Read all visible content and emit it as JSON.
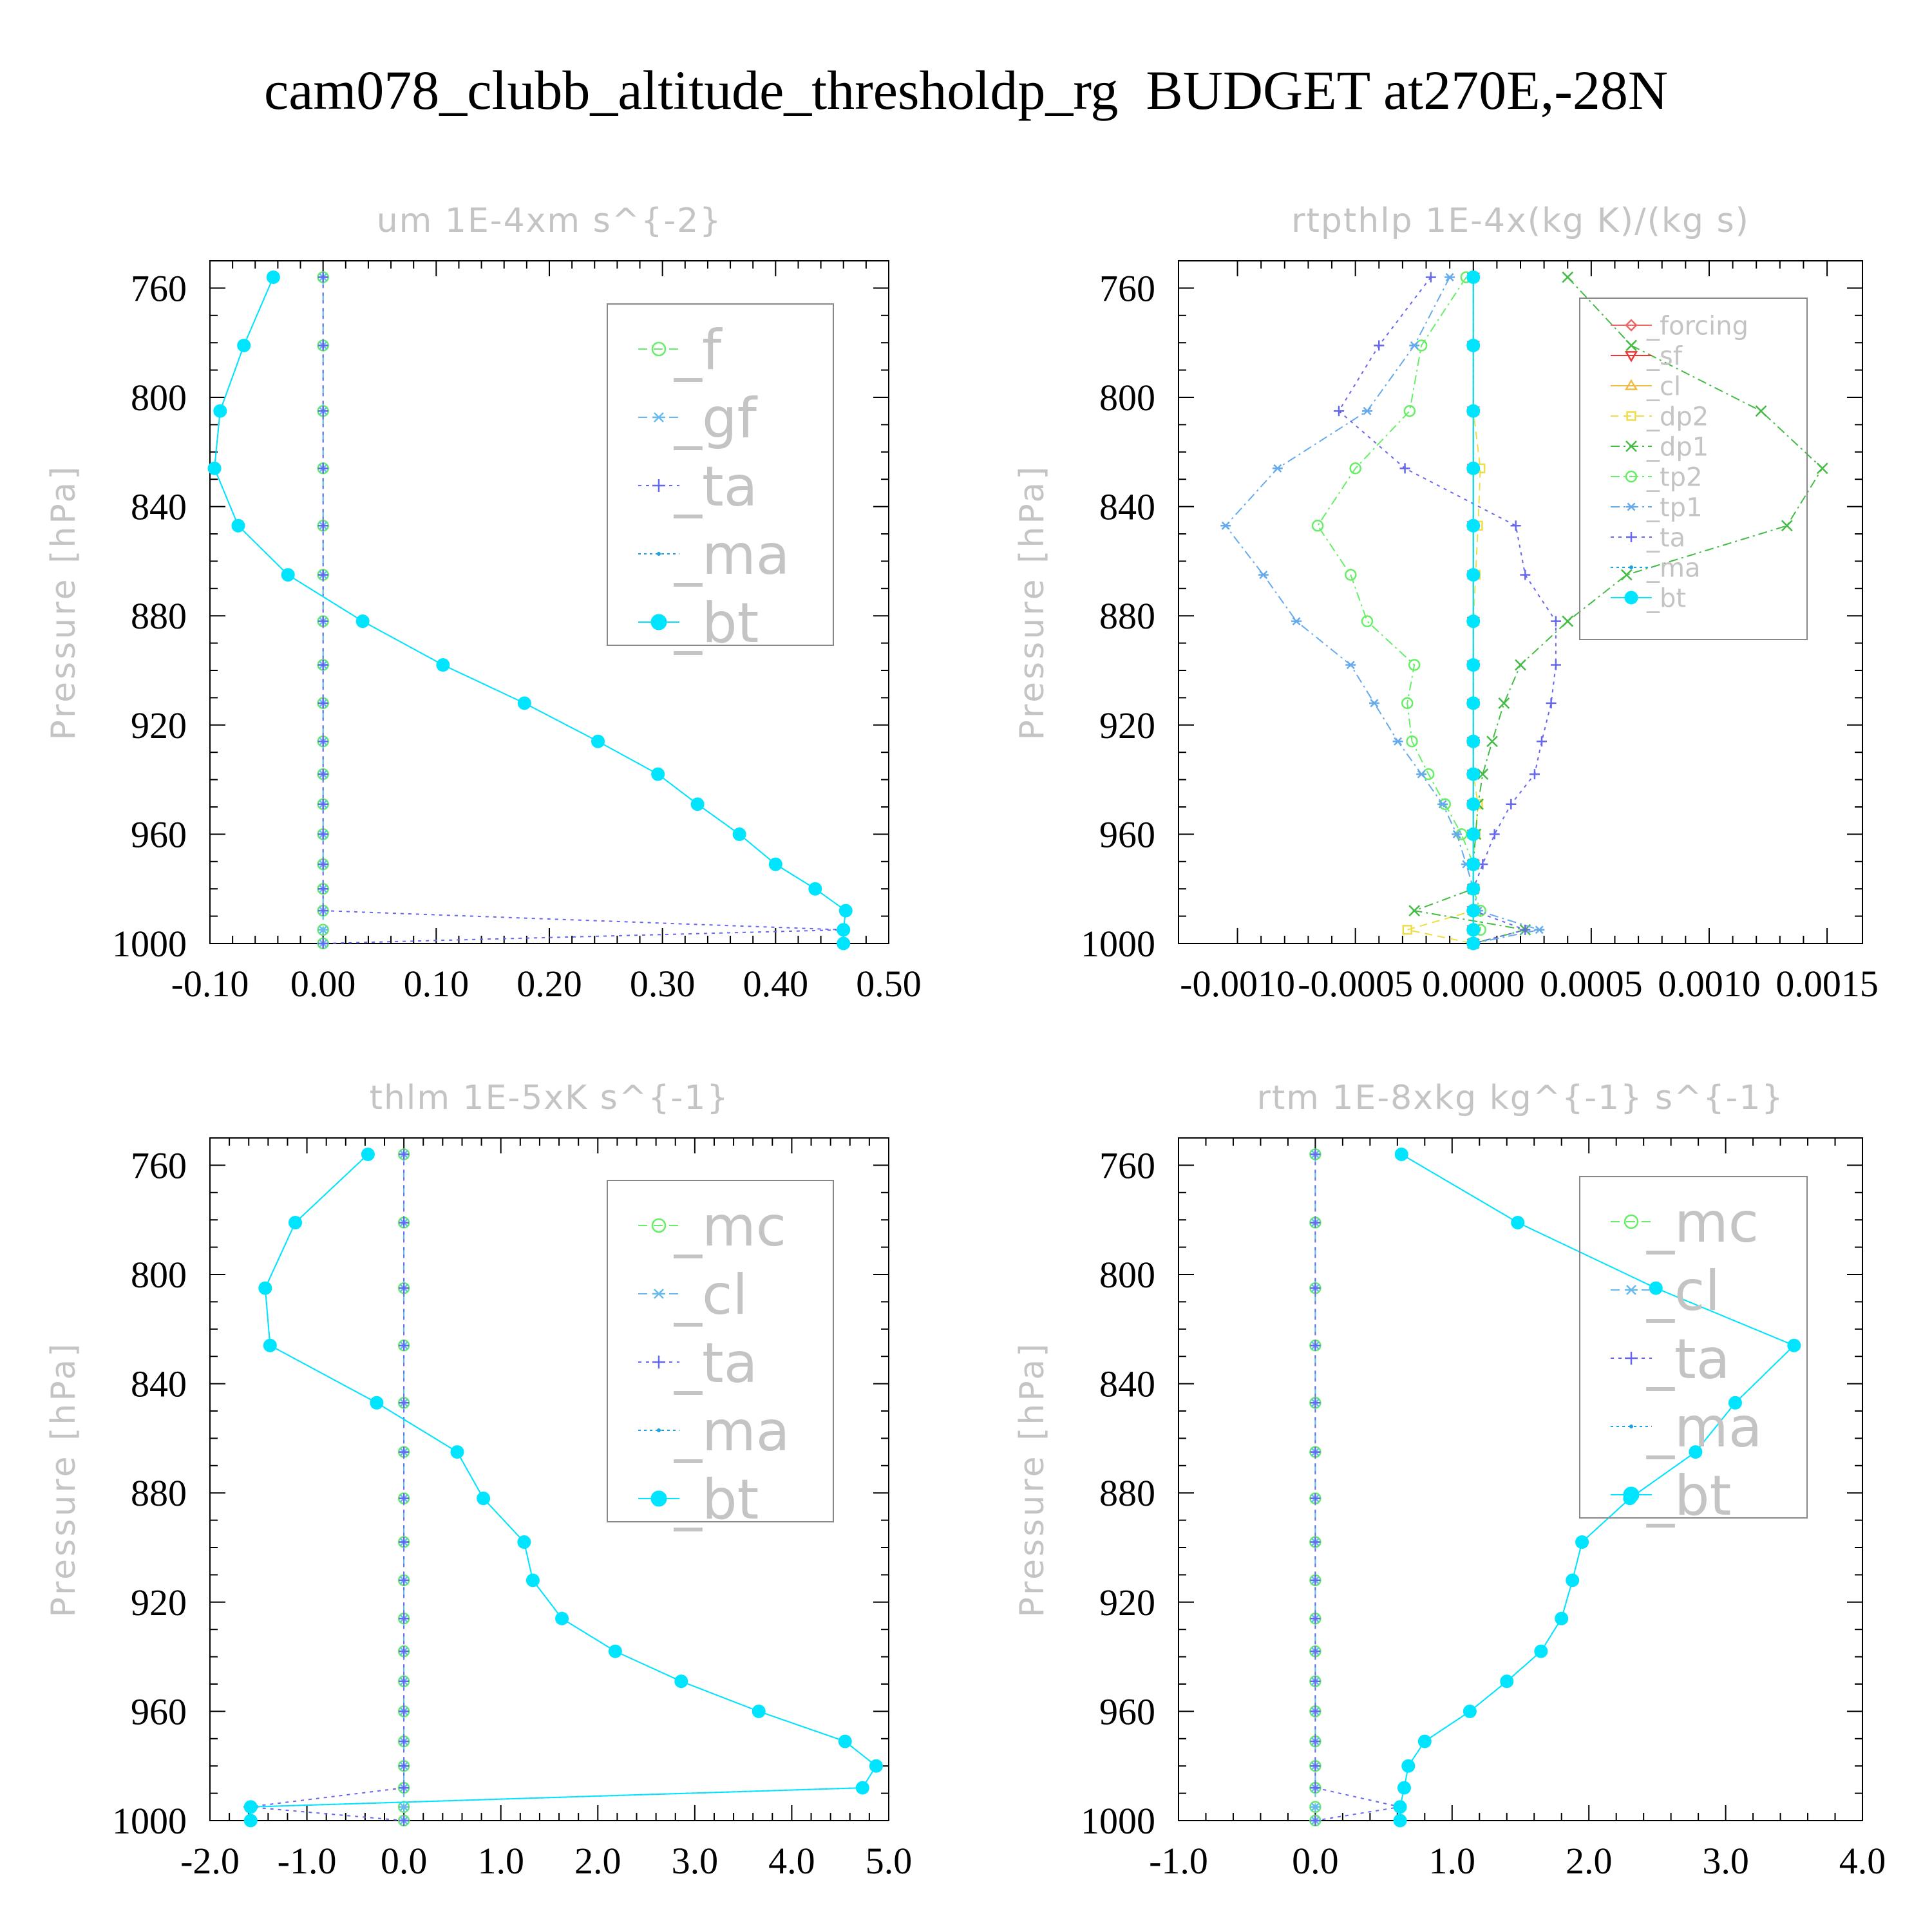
{
  "title": "cam078_clubb_altitude_thresholdp_rg  BUDGET at270E,-28N",
  "chart_data": [
    {
      "type": "line",
      "title": "um  1E-4xm s^{-2}",
      "ylabel": "Pressure [hPa]",
      "xlim": [
        -0.1,
        0.5
      ],
      "ylim": [
        750,
        1000
      ],
      "y_inverted": true,
      "x_ticks": [
        "-0.10",
        "0.00",
        "0.10",
        "0.20",
        "0.30",
        "0.40",
        "0.50"
      ],
      "x_tick_values": [
        -0.1,
        0.0,
        0.1,
        0.2,
        0.3,
        0.4,
        0.5
      ],
      "y_ticks": [
        "760",
        "800",
        "840",
        "880",
        "920",
        "960",
        "1000"
      ],
      "y_tick_values": [
        760,
        800,
        840,
        880,
        920,
        960,
        1000
      ],
      "legend_size": "large",
      "levels": [
        756,
        781,
        805,
        826,
        847,
        865,
        882,
        898,
        912,
        926,
        938,
        949,
        960,
        971,
        980,
        988,
        995,
        1000
      ],
      "series": [
        {
          "name": "_f",
          "color": "#66ee66",
          "marker": "circle-open",
          "dash": "14,10",
          "values": [
            0,
            0,
            0,
            0,
            0,
            0,
            0,
            0,
            0,
            0,
            0,
            0,
            0,
            0,
            0,
            0,
            0,
            0
          ]
        },
        {
          "name": "_gf",
          "color": "#66bbee",
          "marker": "asterisk",
          "dash": "14,10",
          "values": [
            0,
            0,
            0,
            0,
            0,
            0,
            0,
            0,
            0,
            0,
            0,
            0,
            0,
            0,
            0,
            0,
            0,
            0
          ]
        },
        {
          "name": "_ta",
          "color": "#6666ee",
          "marker": "plus",
          "dash": "5,7",
          "values": [
            0,
            0,
            0,
            0,
            0,
            0,
            0,
            0,
            0,
            0,
            0,
            0,
            0,
            0,
            0,
            0,
            0.46,
            0.0
          ]
        },
        {
          "name": "_ma",
          "color": "#1fa0e0",
          "marker": "dot",
          "dash": "4,5",
          "values": [
            -0.044,
            -0.07,
            -0.091,
            -0.096,
            -0.075,
            -0.031,
            0.035,
            0.106,
            0.178,
            0.243,
            0.296,
            0.331,
            0.368,
            0.4,
            0.435,
            0.462,
            0.46,
            0.46
          ]
        },
        {
          "name": "_bt",
          "color": "#00e5ff",
          "marker": "filled",
          "dash": "",
          "values": [
            -0.044,
            -0.07,
            -0.091,
            -0.096,
            -0.075,
            -0.031,
            0.035,
            0.106,
            0.178,
            0.243,
            0.296,
            0.331,
            0.368,
            0.4,
            0.435,
            0.462,
            0.46,
            0.46
          ]
        }
      ]
    },
    {
      "type": "line",
      "title": "rtpthlp  1E-4x(kg K)/(kg s)",
      "ylabel": "Pressure [hPa]",
      "xlim": [
        -0.00125,
        0.00165
      ],
      "ylim": [
        750,
        1000
      ],
      "y_inverted": true,
      "x_ticks": [
        "-0.0010",
        "-0.0005",
        "0.0000",
        "0.0005",
        "0.0010",
        "0.0015"
      ],
      "x_tick_values": [
        -0.001,
        -0.0005,
        0.0,
        0.0005,
        0.001,
        0.0015
      ],
      "y_ticks": [
        "760",
        "800",
        "840",
        "880",
        "920",
        "960",
        "1000"
      ],
      "y_tick_values": [
        760,
        800,
        840,
        880,
        920,
        960,
        1000
      ],
      "legend_size": "small",
      "levels": [
        756,
        781,
        805,
        826,
        847,
        865,
        882,
        898,
        912,
        926,
        938,
        949,
        960,
        971,
        980,
        988,
        995,
        1000
      ],
      "series": [
        {
          "name": "_forcing",
          "color": "#ee6666",
          "marker": "diamond-open",
          "dash": "",
          "values": [
            0,
            0,
            0,
            0,
            0,
            0,
            0,
            0,
            0,
            0,
            0,
            0,
            0,
            0,
            0,
            0,
            0,
            0
          ]
        },
        {
          "name": "_sf",
          "color": "#ee3333",
          "marker": "tri-down",
          "dash": "",
          "values": [
            0,
            0,
            0,
            0,
            0,
            0,
            0,
            0,
            0,
            0,
            0,
            0,
            0,
            0,
            0,
            0,
            0,
            0
          ]
        },
        {
          "name": "_cl",
          "color": "#eebb44",
          "marker": "tri-up",
          "dash": "",
          "values": [
            0,
            0,
            0,
            0,
            0,
            0,
            0,
            0,
            0,
            0,
            0,
            0,
            0,
            0,
            0,
            0,
            0,
            0
          ]
        },
        {
          "name": "_dp2",
          "color": "#eedd44",
          "marker": "square-open",
          "dash": "12,8",
          "values": [
            0,
            0,
            0,
            3e-05,
            2e-05,
            1e-05,
            0,
            0,
            0,
            0,
            0,
            2e-05,
            1e-05,
            0,
            0,
            0,
            -0.00028,
            0
          ]
        },
        {
          "name": "_dp1",
          "color": "#44bb44",
          "marker": "cross",
          "dash": "14,6,3,6",
          "values": [
            0.0004,
            0.00067,
            0.00122,
            0.00148,
            0.00133,
            0.00065,
            0.0004,
            0.0002,
            0.00013,
            8e-05,
            4e-05,
            2e-05,
            1e-05,
            0,
            0,
            -0.00025,
            0.00022,
            0
          ]
        },
        {
          "name": "_tp2",
          "color": "#66ee66",
          "marker": "circle-open",
          "dash": "14,6,3,6",
          "values": [
            -3e-05,
            -0.00022,
            -0.00027,
            -0.0005,
            -0.00066,
            -0.00052,
            -0.00045,
            -0.00025,
            -0.00028,
            -0.00026,
            -0.00019,
            -0.00012,
            -5e-05,
            0,
            0,
            3e-05,
            3e-05,
            0
          ]
        },
        {
          "name": "_tp1",
          "color": "#66aaee",
          "marker": "asterisk",
          "dash": "14,6,3,6",
          "values": [
            -0.0001,
            -0.00025,
            -0.00045,
            -0.00083,
            -0.00105,
            -0.00089,
            -0.00075,
            -0.00052,
            -0.00042,
            -0.00032,
            -0.00022,
            -0.00013,
            -7e-05,
            -3e-05,
            0,
            2e-05,
            0.00028,
            0
          ]
        },
        {
          "name": "_ta",
          "color": "#6666ee",
          "marker": "plus",
          "dash": "5,7",
          "values": [
            -0.00018,
            -0.0004,
            -0.00057,
            -0.00029,
            0.00018,
            0.00022,
            0.00035,
            0.00035,
            0.00033,
            0.00029,
            0.00026,
            0.00016,
            9e-05,
            4e-05,
            0,
            0,
            0.00022,
            0
          ]
        },
        {
          "name": "_ma",
          "color": "#1fa0e0",
          "marker": "dot",
          "dash": "4,5",
          "values": [
            0,
            0,
            0,
            0,
            0,
            0,
            0,
            0,
            0,
            0,
            0,
            0,
            0,
            0,
            0,
            0,
            0,
            0
          ]
        },
        {
          "name": "_bt",
          "color": "#00e5ff",
          "marker": "filled",
          "dash": "",
          "values": [
            0,
            0,
            0,
            0,
            0,
            0,
            0,
            0,
            0,
            0,
            0,
            0,
            0,
            0,
            0,
            0,
            0,
            0
          ]
        }
      ]
    },
    {
      "type": "line",
      "title": "thlm  1E-5xK s^{-1}",
      "ylabel": "Pressure [hPa]",
      "xlim": [
        -2.0,
        5.0
      ],
      "ylim": [
        750,
        1000
      ],
      "y_inverted": true,
      "x_ticks": [
        "-2.0",
        "-1.0",
        "0.0",
        "1.0",
        "2.0",
        "3.0",
        "4.0",
        "5.0"
      ],
      "x_tick_values": [
        -2,
        -1,
        0,
        1,
        2,
        3,
        4,
        5
      ],
      "y_ticks": [
        "760",
        "800",
        "840",
        "880",
        "920",
        "960",
        "1000"
      ],
      "y_tick_values": [
        760,
        800,
        840,
        880,
        920,
        960,
        1000
      ],
      "legend_size": "large",
      "levels": [
        756,
        781,
        805,
        826,
        847,
        865,
        882,
        898,
        912,
        926,
        938,
        949,
        960,
        971,
        980,
        988,
        995,
        1000
      ],
      "series": [
        {
          "name": "_mc",
          "color": "#66ee66",
          "marker": "circle-open",
          "dash": "14,10",
          "values": [
            0,
            0,
            0,
            0,
            0,
            0,
            0,
            0,
            0,
            0,
            0,
            0,
            0,
            0,
            0,
            0,
            0,
            0
          ]
        },
        {
          "name": "_cl",
          "color": "#66bbee",
          "marker": "asterisk",
          "dash": "14,10",
          "values": [
            0,
            0,
            0,
            0,
            0,
            0,
            0,
            0,
            0,
            0,
            0,
            0,
            0,
            0,
            0,
            0,
            0,
            0
          ]
        },
        {
          "name": "_ta",
          "color": "#6666ee",
          "marker": "plus",
          "dash": "5,7",
          "values": [
            0,
            0,
            0,
            0,
            0,
            0,
            0,
            0,
            0,
            0,
            0,
            0,
            0,
            0,
            0,
            0,
            -1.6,
            0.0
          ]
        },
        {
          "name": "_ma",
          "color": "#1fa0e0",
          "marker": "dot",
          "dash": "4,5",
          "values": [
            -0.37,
            -1.12,
            -1.43,
            -1.38,
            -0.28,
            0.55,
            0.82,
            1.24,
            1.33,
            1.63,
            2.18,
            2.86,
            3.66,
            4.55,
            4.87,
            4.73,
            -1.58,
            -1.58
          ]
        },
        {
          "name": "_bt",
          "color": "#00e5ff",
          "marker": "filled",
          "dash": "",
          "values": [
            -0.37,
            -1.12,
            -1.43,
            -1.38,
            -0.28,
            0.55,
            0.82,
            1.24,
            1.33,
            1.63,
            2.18,
            2.86,
            3.66,
            4.55,
            4.87,
            4.73,
            -1.58,
            -1.58
          ]
        }
      ]
    },
    {
      "type": "line",
      "title": "rtm  1E-8xkg kg^{-1} s^{-1}",
      "ylabel": "Pressure [hPa]",
      "xlim": [
        -1.0,
        4.0
      ],
      "ylim": [
        750,
        1000
      ],
      "y_inverted": true,
      "x_ticks": [
        "-1.0",
        "0.0",
        "1.0",
        "2.0",
        "3.0",
        "4.0"
      ],
      "x_tick_values": [
        -1,
        0,
        1,
        2,
        3,
        4
      ],
      "y_ticks": [
        "760",
        "800",
        "840",
        "880",
        "920",
        "960",
        "1000"
      ],
      "y_tick_values": [
        760,
        800,
        840,
        880,
        920,
        960,
        1000
      ],
      "legend_size": "large",
      "levels": [
        756,
        781,
        805,
        826,
        847,
        865,
        882,
        898,
        912,
        926,
        938,
        949,
        960,
        971,
        980,
        988,
        995,
        1000
      ],
      "series": [
        {
          "name": "_mc",
          "color": "#66ee66",
          "marker": "circle-open",
          "dash": "14,10",
          "values": [
            0,
            0,
            0,
            0,
            0,
            0,
            0,
            0,
            0,
            0,
            0,
            0,
            0,
            0,
            0,
            0,
            0,
            0
          ]
        },
        {
          "name": "_cl",
          "color": "#66bbee",
          "marker": "asterisk",
          "dash": "14,10",
          "values": [
            0,
            0,
            0,
            0,
            0,
            0,
            0,
            0,
            0,
            0,
            0,
            0,
            0,
            0,
            0,
            0,
            0,
            0
          ]
        },
        {
          "name": "_ta",
          "color": "#6666ee",
          "marker": "plus",
          "dash": "5,7",
          "values": [
            0,
            0,
            0,
            0,
            0,
            0,
            0,
            0,
            0,
            0,
            0,
            0,
            0,
            0,
            0,
            0,
            0.62,
            0.0
          ]
        },
        {
          "name": "_ma",
          "color": "#1fa0e0",
          "marker": "dot",
          "dash": "4,5",
          "values": [
            0.63,
            1.48,
            2.49,
            3.5,
            3.07,
            2.78,
            2.3,
            1.95,
            1.88,
            1.8,
            1.65,
            1.4,
            1.13,
            0.8,
            0.68,
            0.65,
            0.62,
            0.62
          ]
        },
        {
          "name": "_bt",
          "color": "#00e5ff",
          "marker": "filled",
          "dash": "",
          "values": [
            0.63,
            1.48,
            2.49,
            3.5,
            3.07,
            2.78,
            2.3,
            1.95,
            1.88,
            1.8,
            1.65,
            1.4,
            1.13,
            0.8,
            0.68,
            0.65,
            0.62,
            0.62
          ]
        }
      ]
    }
  ]
}
